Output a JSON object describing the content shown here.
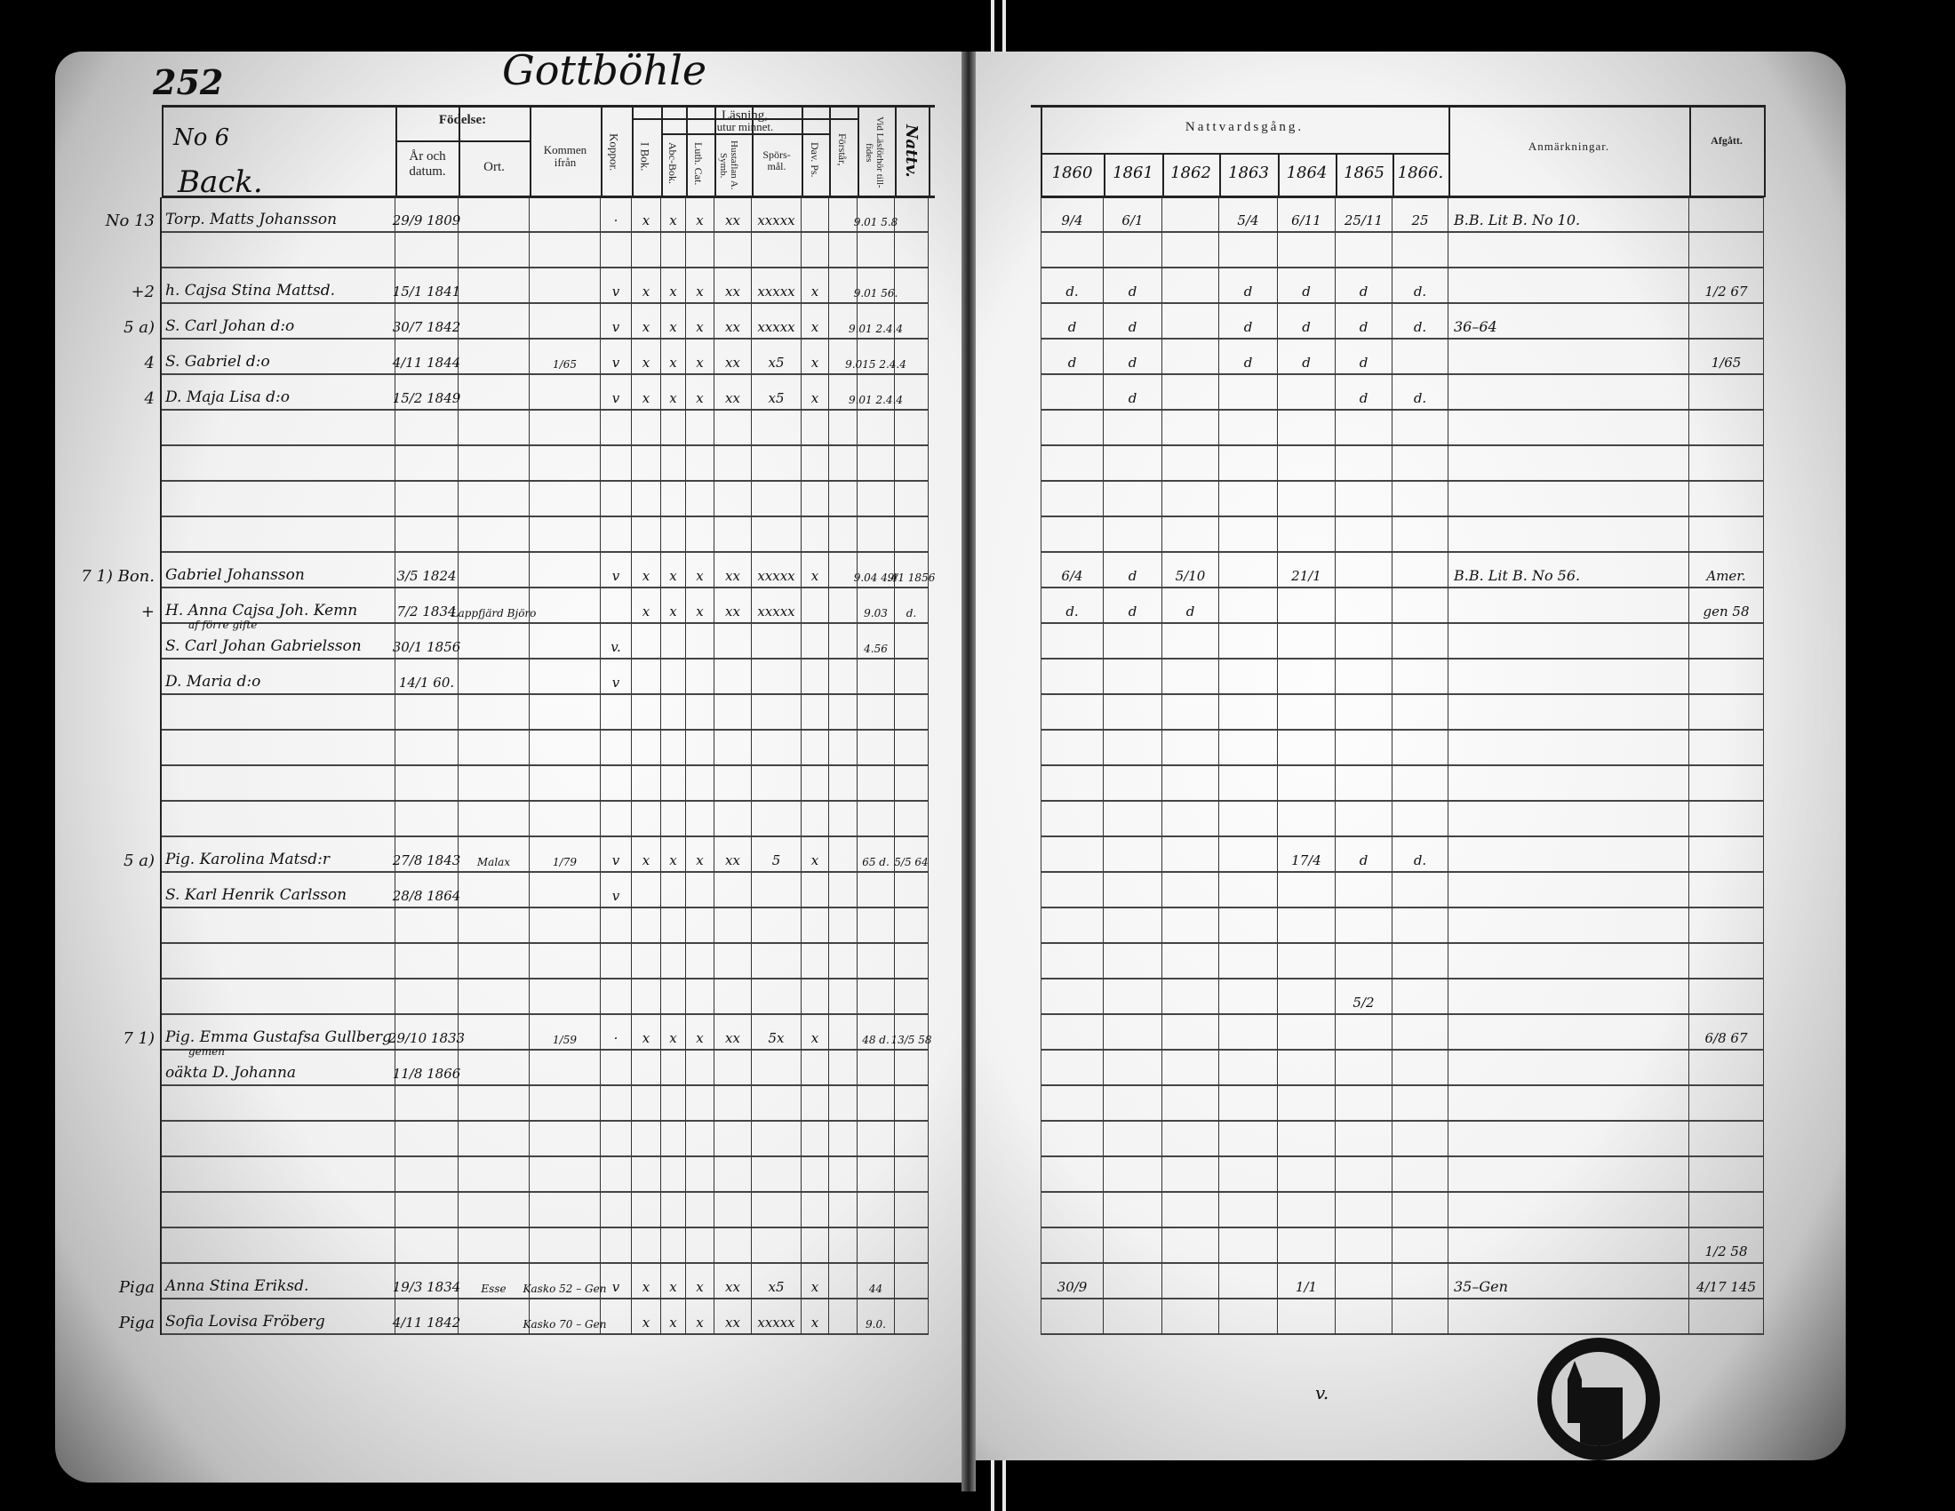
{
  "left_page": {
    "page_number": "252",
    "village": "Gottböhle",
    "household_no": "No 6",
    "farm_name": "Back.",
    "headers": {
      "fodelse": "Födelse:",
      "ar_och_datum": "År och datum.",
      "ort": "Ort.",
      "kommen_ifran": "Kommen ifrån",
      "koppor": "Koppor.",
      "lasning": "Läsning,",
      "i_bok": "I Bok.",
      "utur_minnet": "utur minnet.",
      "abc_bok": "Abc-Bok.",
      "luth_cat": "Luth. Cat.",
      "hustaflan": "Hustaflan A. Symb.",
      "sporsmal": "Spörs-mål.",
      "dav_ps": "Dav. Ps.",
      "forstar": "Förstår,",
      "vid_lasforhor": "Vid Läsförhör till-fides",
      "last_col": "Nattv."
    },
    "rows": [
      {
        "margin": "No 13",
        "name": "Torp. Matts Johansson",
        "date": "29/9 1809",
        "ort": "",
        "kommen": "",
        "koppor": "·",
        "ibok": "x",
        "abc": "x",
        "luth": "x",
        "hust": "xx",
        "spors": "xxxxx",
        "dav": "",
        "forst": "",
        "lasf": "9.01 5.8",
        "last": ""
      },
      {},
      {
        "margin": "+2",
        "name": "h. Cajsa Stina Mattsd.",
        "date": "15/1 1841",
        "koppor": "v",
        "ibok": "x",
        "abc": "x",
        "luth": "x",
        "hust": "xx",
        "spors": "xxxxx",
        "dav": "x",
        "lasf": "9.01 56."
      },
      {
        "margin": "5 a)",
        "name": "S. Carl Johan   d:o",
        "date": "30/7 1842",
        "koppor": "v",
        "ibok": "x",
        "abc": "x",
        "luth": "x",
        "hust": "xx",
        "spors": "xxxxx",
        "dav": "x",
        "lasf": "9.01 2.4.4"
      },
      {
        "margin": "4",
        "name": "S. Gabriel   d:o",
        "date": "4/11 1844",
        "kommen": "1/65",
        "koppor": "v",
        "ibok": "x",
        "abc": "x",
        "luth": "x",
        "hust": "xx",
        "spors": "x5",
        "dav": "x",
        "lasf": "9.015 2.4.4"
      },
      {
        "margin": "4",
        "name": "D. Maja Lisa   d:o",
        "date": "15/2 1849",
        "koppor": "v",
        "ibok": "x",
        "abc": "x",
        "luth": "x",
        "hust": "xx",
        "spors": "x5",
        "dav": "x",
        "lasf": "9.01 2.4.4"
      },
      {},
      {},
      {},
      {},
      {
        "margin": "7 1) Bon.",
        "name": "Gabriel Johansson",
        "date": "3/5 1824",
        "koppor": "v",
        "ibok": "x",
        "abc": "x",
        "luth": "x",
        "hust": "xx",
        "spors": "xxxxx",
        "dav": "x",
        "lasf": "9.04 4.4",
        "last": "9/1 1856"
      },
      {
        "margin": "+",
        "name": "H. Anna Cajsa Joh. Kemn",
        "date": "7/2 1834",
        "ort": "Lappfjärd Björo",
        "ibok": "x",
        "abc": "x",
        "luth": "x",
        "hust": "xx",
        "spors": "xxxxx",
        "lasf": "9.03",
        "last": "d."
      },
      {
        "name": "S. Carl Johan Gabrielsson",
        "note": "af förre gifte",
        "date": "30/1 1856",
        "koppor": "v.",
        "lasf": "4.56"
      },
      {
        "name": "D. Maria   d:o",
        "date": "14/1 60.",
        "koppor": "v"
      },
      {},
      {},
      {},
      {},
      {
        "margin": "5 a)",
        "name": "Pig. Karolina Matsd:r",
        "date": "27/8 1843",
        "ort": "Malax",
        "kommen": "1/79",
        "koppor": "v",
        "ibok": "x",
        "abc": "x",
        "luth": "x",
        "hust": "xx",
        "spors": "5",
        "dav": "x",
        "lasf": "65 d.",
        "last": "5/5 64"
      },
      {
        "name": "S. Karl Henrik Carlsson",
        "date": "28/8 1864",
        "koppor": "v"
      },
      {},
      {},
      {},
      {
        "margin": "7 1)",
        "name": "Pig. Emma Gustafsa Gullberg",
        "date": "29/10 1833",
        "kommen": "1/59",
        "koppor": "·",
        "ibok": "x",
        "abc": "x",
        "luth": "x",
        "hust": "xx",
        "spors": "5x",
        "dav": "x",
        "lasf": "48 d.",
        "last": "13/5 58"
      },
      {
        "name": "oäkta D. Johanna",
        "note": "gemen",
        "date": "11/8 1866"
      },
      {},
      {},
      {},
      {},
      {},
      {
        "margin": "Piga",
        "name": "Anna Stina Eriksd.",
        "date": "19/3 1834",
        "ort": "Esse",
        "kommen": "Kasko 52 – Gen",
        "koppor": "v",
        "ibok": "x",
        "abc": "x",
        "luth": "x",
        "hust": "xx",
        "spors": "x5",
        "dav": "x",
        "lasf": "44"
      },
      {
        "margin": "Piga",
        "name": "Sofia Lovisa Fröberg",
        "date": "4/11 1842",
        "kommen": "Kasko 70 – Gen",
        "ibok": "x",
        "abc": "x",
        "luth": "x",
        "hust": "xx",
        "spors": "xxxxx",
        "dav": "x",
        "lasf": "9.0."
      }
    ]
  },
  "right_page": {
    "headers": {
      "nattvardsgang": "Nattvardsgång.",
      "years": [
        "1860",
        "1861",
        "1862",
        "1863",
        "1864",
        "1865",
        "1866."
      ],
      "anmarkningar": "Anmärkningar.",
      "afgatt": "Afgått."
    },
    "rows": [
      {
        "y": [
          "9/4",
          "6/1",
          "",
          "5/4",
          "6/11",
          "25/11",
          "25"
        ],
        "remark": "B.B. Lit B. No 10.",
        "afgatt": ""
      },
      {},
      {
        "y": [
          "d.",
          "d",
          "",
          "d",
          "d",
          "d",
          "d."
        ],
        "afgatt": "1/2 67"
      },
      {
        "y": [
          "d",
          "d",
          "",
          "d",
          "d",
          "d",
          "d."
        ],
        "remark": "36–64"
      },
      {
        "y": [
          "d",
          "d",
          "",
          "d",
          "d",
          "d",
          ""
        ],
        "afgatt": "1/65"
      },
      {
        "y": [
          "",
          "d",
          "",
          "",
          "",
          "d",
          "d."
        ]
      },
      {},
      {},
      {},
      {},
      {
        "y": [
          "6/4",
          "d",
          "5/10",
          "",
          "21/1",
          "",
          ""
        ],
        "remark": "B.B. Lit B. No 56.",
        "afgatt": "Amer."
      },
      {
        "y": [
          "d.",
          "d",
          "d",
          "",
          "",
          "",
          ""
        ],
        "afgatt": "gen 58"
      },
      {},
      {},
      {},
      {},
      {},
      {},
      {
        "y": [
          "",
          "",
          "",
          "",
          "17/4",
          "d",
          "d."
        ]
      },
      {},
      {},
      {},
      {
        "y": [
          "",
          "",
          "",
          "",
          "",
          "5/2",
          ""
        ]
      },
      {
        "afgatt": "6/8 67"
      },
      {},
      {},
      {},
      {},
      {},
      {
        "afgatt": "1/2 58"
      },
      {
        "y": [
          "30/9",
          "",
          "",
          "",
          "1/1",
          "",
          ""
        ],
        "remark": "35–Gen",
        "afgatt": "4/17 145"
      },
      {}
    ],
    "footer_mark": "v."
  }
}
